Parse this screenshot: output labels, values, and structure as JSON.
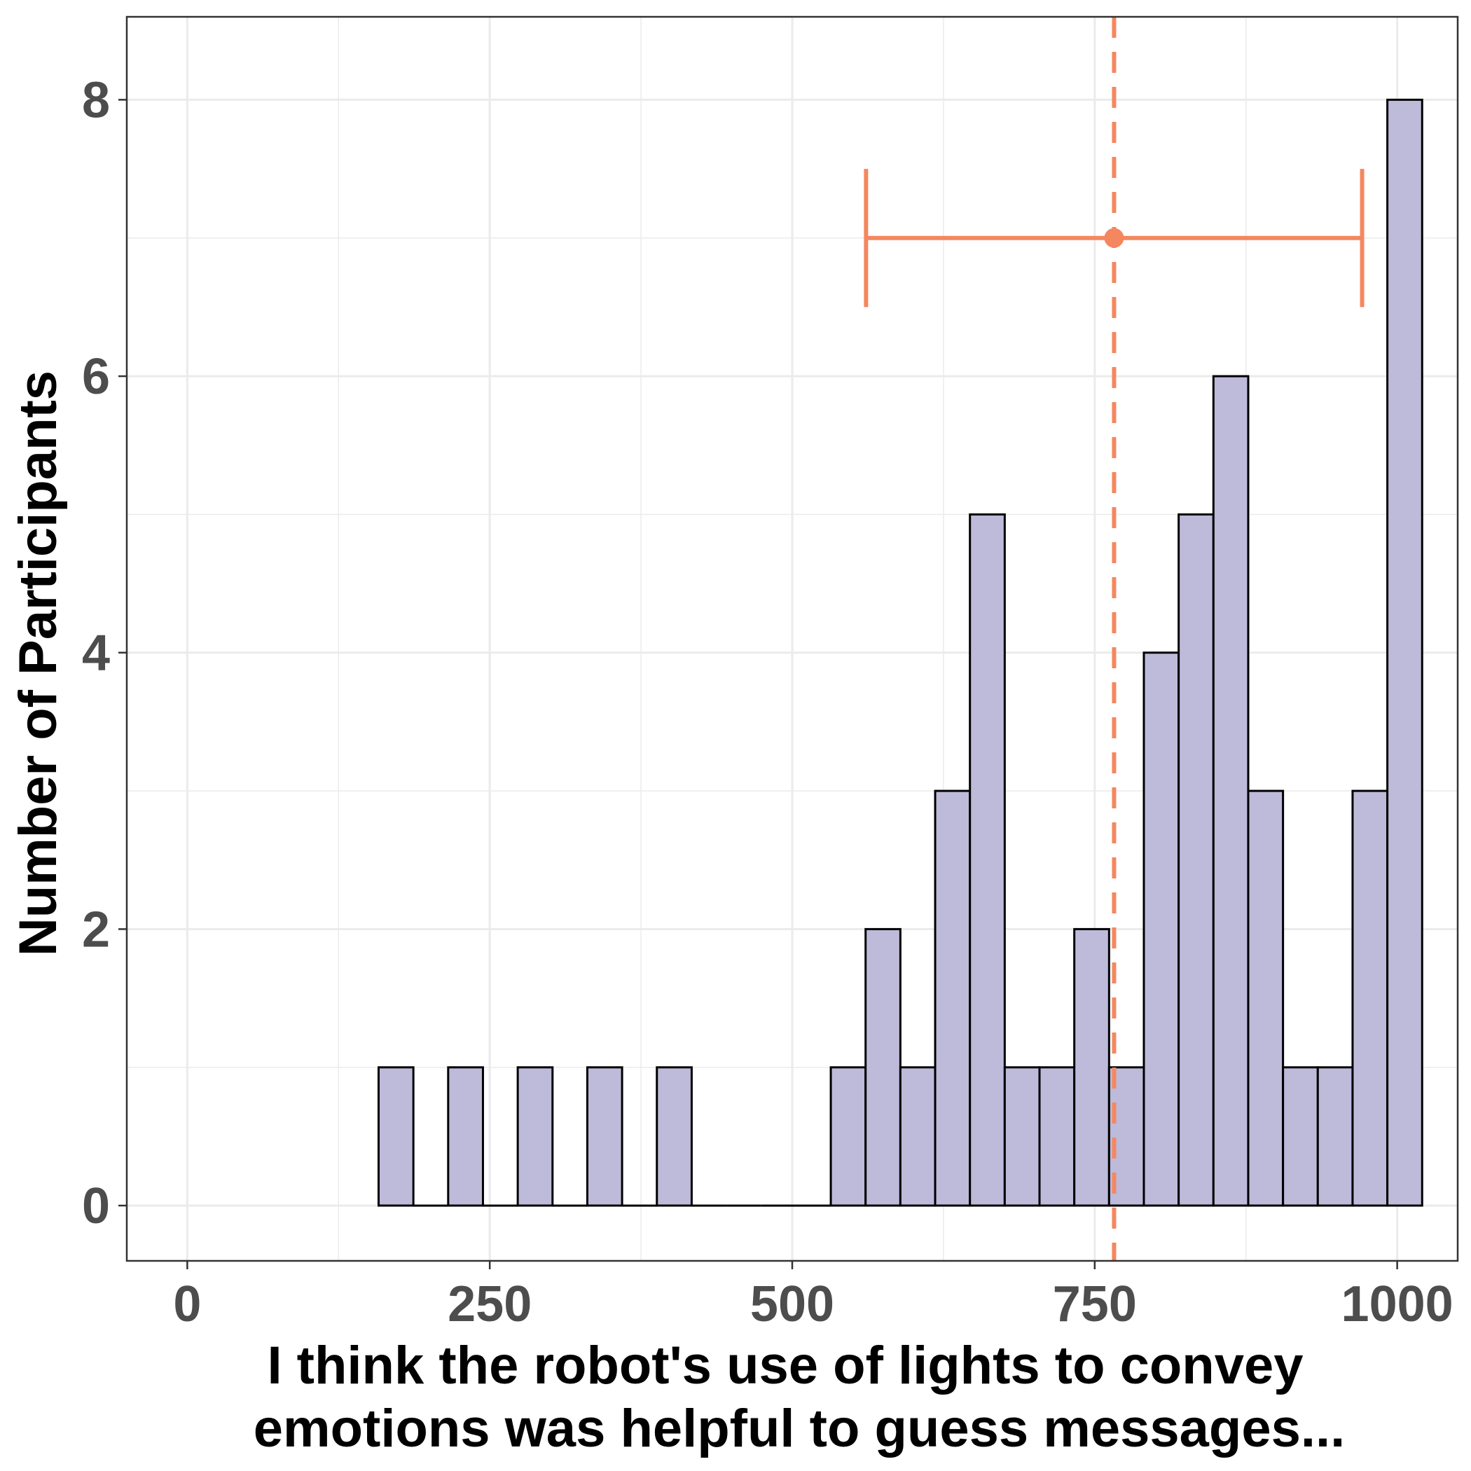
{
  "colors": {
    "bar_fill": "#bebada",
    "bar_stroke": "#000000",
    "accent": "#f4875f",
    "grid": "#ebebeb",
    "tick_text": "#4d4d4d"
  },
  "chart_data": {
    "type": "bar",
    "title": "",
    "xlabel_lines": [
      "I think the robot's use of lights to convey",
      "emotions was helpful to guess messages..."
    ],
    "ylabel": "Number of Participants",
    "xlim": [
      -50,
      1050
    ],
    "ylim": [
      -0.4,
      8.6
    ],
    "x_ticks": [
      0,
      250,
      500,
      750,
      1000
    ],
    "y_ticks": [
      0,
      2,
      4,
      6,
      8
    ],
    "bin_width": 28.75,
    "bins": [
      {
        "x": 172.5,
        "count": 1
      },
      {
        "x": 201.25,
        "count": 0
      },
      {
        "x": 230,
        "count": 1
      },
      {
        "x": 258.75,
        "count": 0
      },
      {
        "x": 287.5,
        "count": 1
      },
      {
        "x": 316.25,
        "count": 0
      },
      {
        "x": 345,
        "count": 1
      },
      {
        "x": 373.75,
        "count": 0
      },
      {
        "x": 402.5,
        "count": 1
      },
      {
        "x": 431.25,
        "count": 0
      },
      {
        "x": 460,
        "count": 0
      },
      {
        "x": 488.75,
        "count": 0
      },
      {
        "x": 517.5,
        "count": 0
      },
      {
        "x": 546.25,
        "count": 1
      },
      {
        "x": 575,
        "count": 2
      },
      {
        "x": 603.75,
        "count": 1
      },
      {
        "x": 632.5,
        "count": 3
      },
      {
        "x": 661.25,
        "count": 5
      },
      {
        "x": 690,
        "count": 1
      },
      {
        "x": 718.75,
        "count": 1
      },
      {
        "x": 747.5,
        "count": 2
      },
      {
        "x": 776.25,
        "count": 1
      },
      {
        "x": 805,
        "count": 4
      },
      {
        "x": 833.75,
        "count": 5
      },
      {
        "x": 862.5,
        "count": 6
      },
      {
        "x": 891.25,
        "count": 3
      },
      {
        "x": 920,
        "count": 1
      },
      {
        "x": 948.75,
        "count": 1
      },
      {
        "x": 977.5,
        "count": 3
      },
      {
        "x": 1006.25,
        "count": 8
      }
    ],
    "mean_line": {
      "x": 766,
      "style": "dashed"
    },
    "error_bar": {
      "center": 766,
      "low": 561,
      "high": 971,
      "y": 7,
      "cap_half_height": 0.5
    }
  }
}
